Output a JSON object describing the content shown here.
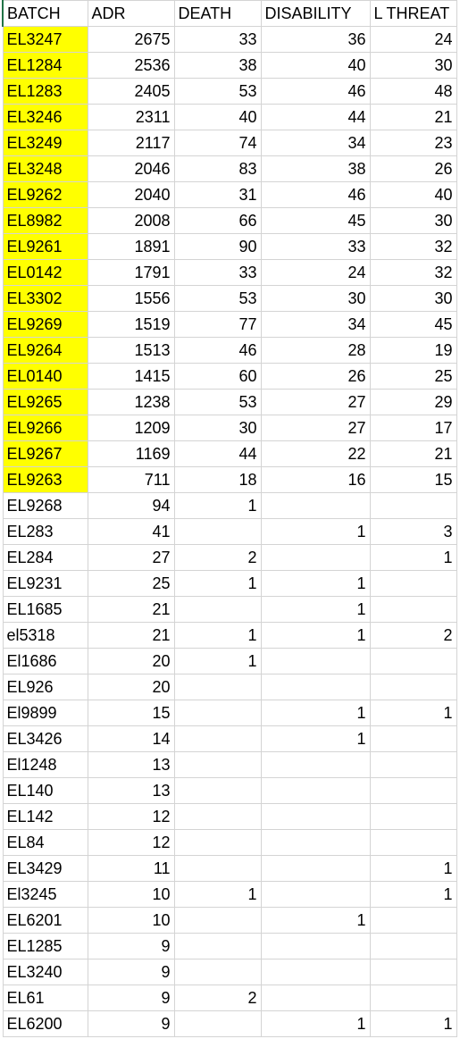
{
  "sheet": {
    "columns": [
      "BATCH",
      "ADR",
      "DEATH",
      "DISABILITY",
      "L THREAT"
    ],
    "highlight_color": "#ffff00",
    "highlighted_rows": 18,
    "rows": [
      [
        "EL3247",
        "2675",
        "33",
        "36",
        "24"
      ],
      [
        "EL1284",
        "2536",
        "38",
        "40",
        "30"
      ],
      [
        "EL1283",
        "2405",
        "53",
        "46",
        "48"
      ],
      [
        "EL3246",
        "2311",
        "40",
        "44",
        "21"
      ],
      [
        "EL3249",
        "2117",
        "74",
        "34",
        "23"
      ],
      [
        "EL3248",
        "2046",
        "83",
        "38",
        "26"
      ],
      [
        "EL9262",
        "2040",
        "31",
        "46",
        "40"
      ],
      [
        "EL8982",
        "2008",
        "66",
        "45",
        "30"
      ],
      [
        "EL9261",
        "1891",
        "90",
        "33",
        "32"
      ],
      [
        "EL0142",
        "1791",
        "33",
        "24",
        "32"
      ],
      [
        "EL3302",
        "1556",
        "53",
        "30",
        "30"
      ],
      [
        "EL9269",
        "1519",
        "77",
        "34",
        "45"
      ],
      [
        "EL9264",
        "1513",
        "46",
        "28",
        "19"
      ],
      [
        "EL0140",
        "1415",
        "60",
        "26",
        "25"
      ],
      [
        "EL9265",
        "1238",
        "53",
        "27",
        "29"
      ],
      [
        "EL9266",
        "1209",
        "30",
        "27",
        "17"
      ],
      [
        "EL9267",
        "1169",
        "44",
        "22",
        "21"
      ],
      [
        "EL9263",
        "711",
        "18",
        "16",
        "15"
      ],
      [
        "EL9268",
        "94",
        "1",
        "",
        ""
      ],
      [
        "EL283",
        "41",
        "",
        "1",
        "3"
      ],
      [
        "EL284",
        "27",
        "2",
        "",
        "1"
      ],
      [
        "EL9231",
        "25",
        "1",
        "1",
        ""
      ],
      [
        "EL1685",
        "21",
        "",
        "1",
        ""
      ],
      [
        "el5318",
        "21",
        "1",
        "1",
        "2"
      ],
      [
        "El1686",
        "20",
        "1",
        "",
        ""
      ],
      [
        "EL926",
        "20",
        "",
        "",
        ""
      ],
      [
        "El9899",
        "15",
        "",
        "1",
        "1"
      ],
      [
        "EL3426",
        "14",
        "",
        "1",
        ""
      ],
      [
        "El1248",
        "13",
        "",
        "",
        ""
      ],
      [
        "EL140",
        "13",
        "",
        "",
        ""
      ],
      [
        "EL142",
        "12",
        "",
        "",
        ""
      ],
      [
        "EL84",
        "12",
        "",
        "",
        ""
      ],
      [
        "EL3429",
        "11",
        "",
        "",
        "1"
      ],
      [
        "El3245",
        "10",
        "1",
        "",
        "1"
      ],
      [
        "EL6201",
        "10",
        "",
        "1",
        ""
      ],
      [
        "EL1285",
        "9",
        "",
        "",
        ""
      ],
      [
        "EL3240",
        "9",
        "",
        "",
        ""
      ],
      [
        "EL61",
        "9",
        "2",
        "",
        ""
      ],
      [
        "EL6200",
        "9",
        "",
        "1",
        "1"
      ]
    ]
  }
}
